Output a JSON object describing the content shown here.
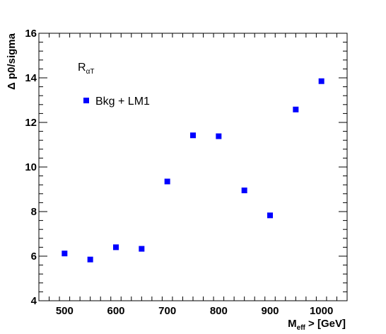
{
  "chart_data": {
    "type": "scatter",
    "xlabel_main": "M",
    "xlabel_sub": "eff",
    "xlabel_rest": " > [GeV]",
    "ylabel": "Δ p0/sigma",
    "xlim": [
      450,
      1050
    ],
    "ylim": [
      4,
      16
    ],
    "x_ticks": [
      500,
      600,
      700,
      800,
      900,
      1000
    ],
    "y_ticks": [
      4,
      6,
      8,
      10,
      12,
      14,
      16
    ],
    "grid": false,
    "annotation_main": "R",
    "annotation_sub": "αT",
    "legend_position": "top-left",
    "marker_color": "#0000ff",
    "series": [
      {
        "name": "Bkg + LM1",
        "x": [
          500,
          550,
          600,
          650,
          700,
          750,
          800,
          850,
          900,
          950,
          1000
        ],
        "y": [
          6.12,
          5.85,
          6.4,
          6.33,
          9.35,
          11.42,
          11.38,
          8.95,
          7.83,
          12.58,
          13.85
        ]
      }
    ]
  }
}
